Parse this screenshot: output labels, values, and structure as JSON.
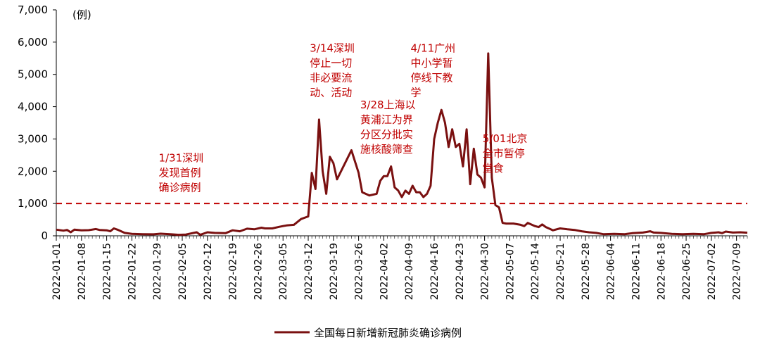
{
  "chart_data": {
    "type": "line",
    "unit_label": "(例)",
    "ylim": [
      0,
      7000
    ],
    "yticks": [
      "0",
      "1,000",
      "2,000",
      "3,000",
      "4,000",
      "5,000",
      "6,000",
      "7,000"
    ],
    "ytick_values": [
      0,
      1000,
      2000,
      3000,
      4000,
      5000,
      6000,
      7000
    ],
    "x_start": "2022-01-01",
    "x_end": "2022-07-12",
    "xticks": [
      "2022-01-01",
      "2022-01-08",
      "2022-01-15",
      "2022-01-22",
      "2022-01-29",
      "2022-02-05",
      "2022-02-12",
      "2022-02-19",
      "2022-02-26",
      "2022-03-05",
      "2022-03-12",
      "2022-03-19",
      "2022-03-26",
      "2022-04-02",
      "2022-04-09",
      "2022-04-16",
      "2022-04-23",
      "2022-04-30",
      "2022-05-07",
      "2022-05-14",
      "2022-05-21",
      "2022-05-28",
      "2022-06-04",
      "2022-06-11",
      "2022-06-18",
      "2022-06-25",
      "2022-07-02",
      "2022-07-09"
    ],
    "reference_line": {
      "value": 1000,
      "style": "dashed",
      "color": "#c00000"
    },
    "series": [
      {
        "name": "全国每日新增新冠肺炎确诊病例",
        "color": "#7a1010",
        "points": [
          [
            "2022-01-01",
            190
          ],
          [
            "2022-01-03",
            160
          ],
          [
            "2022-01-04",
            180
          ],
          [
            "2022-01-05",
            110
          ],
          [
            "2022-01-06",
            190
          ],
          [
            "2022-01-08",
            170
          ],
          [
            "2022-01-10",
            175
          ],
          [
            "2022-01-12",
            210
          ],
          [
            "2022-01-13",
            180
          ],
          [
            "2022-01-15",
            170
          ],
          [
            "2022-01-16",
            140
          ],
          [
            "2022-01-17",
            230
          ],
          [
            "2022-01-18",
            190
          ],
          [
            "2022-01-20",
            90
          ],
          [
            "2022-01-22",
            60
          ],
          [
            "2022-01-25",
            50
          ],
          [
            "2022-01-28",
            45
          ],
          [
            "2022-01-30",
            65
          ],
          [
            "2022-02-02",
            45
          ],
          [
            "2022-02-04",
            30
          ],
          [
            "2022-02-06",
            40
          ],
          [
            "2022-02-09",
            110
          ],
          [
            "2022-02-10",
            30
          ],
          [
            "2022-02-12",
            110
          ],
          [
            "2022-02-14",
            90
          ],
          [
            "2022-02-17",
            80
          ],
          [
            "2022-02-19",
            170
          ],
          [
            "2022-02-21",
            140
          ],
          [
            "2022-02-23",
            220
          ],
          [
            "2022-02-25",
            200
          ],
          [
            "2022-02-27",
            250
          ],
          [
            "2022-02-28",
            230
          ],
          [
            "2022-03-02",
            230
          ],
          [
            "2022-03-04",
            280
          ],
          [
            "2022-03-05",
            300
          ],
          [
            "2022-03-06",
            320
          ],
          [
            "2022-03-08",
            340
          ],
          [
            "2022-03-10",
            520
          ],
          [
            "2022-03-12",
            600
          ],
          [
            "2022-03-13",
            1950
          ],
          [
            "2022-03-14",
            1450
          ],
          [
            "2022-03-15",
            3600
          ],
          [
            "2022-03-16",
            2000
          ],
          [
            "2022-03-17",
            1300
          ],
          [
            "2022-03-18",
            2450
          ],
          [
            "2022-03-19",
            2250
          ],
          [
            "2022-03-20",
            1750
          ],
          [
            "2022-03-22",
            2200
          ],
          [
            "2022-03-24",
            2650
          ],
          [
            "2022-03-26",
            1950
          ],
          [
            "2022-03-27",
            1350
          ],
          [
            "2022-03-29",
            1250
          ],
          [
            "2022-03-31",
            1300
          ],
          [
            "2022-04-01",
            1700
          ],
          [
            "2022-04-02",
            1850
          ],
          [
            "2022-04-03",
            1850
          ],
          [
            "2022-04-04",
            2150
          ],
          [
            "2022-04-05",
            1500
          ],
          [
            "2022-04-06",
            1400
          ],
          [
            "2022-04-07",
            1200
          ],
          [
            "2022-04-08",
            1400
          ],
          [
            "2022-04-09",
            1300
          ],
          [
            "2022-04-10",
            1550
          ],
          [
            "2022-04-11",
            1350
          ],
          [
            "2022-04-12",
            1350
          ],
          [
            "2022-04-13",
            1200
          ],
          [
            "2022-04-14",
            1300
          ],
          [
            "2022-04-15",
            1550
          ],
          [
            "2022-04-16",
            3000
          ],
          [
            "2022-04-17",
            3500
          ],
          [
            "2022-04-18",
            3900
          ],
          [
            "2022-04-19",
            3500
          ],
          [
            "2022-04-20",
            2750
          ],
          [
            "2022-04-21",
            3300
          ],
          [
            "2022-04-22",
            2750
          ],
          [
            "2022-04-23",
            2850
          ],
          [
            "2022-04-24",
            2150
          ],
          [
            "2022-04-25",
            3300
          ],
          [
            "2022-04-26",
            1600
          ],
          [
            "2022-04-27",
            2700
          ],
          [
            "2022-04-28",
            1900
          ],
          [
            "2022-04-29",
            1800
          ],
          [
            "2022-04-30",
            1500
          ],
          [
            "2022-05-01",
            5650
          ],
          [
            "2022-05-02",
            1800
          ],
          [
            "2022-05-03",
            950
          ],
          [
            "2022-05-04",
            880
          ],
          [
            "2022-05-05",
            400
          ],
          [
            "2022-05-06",
            380
          ],
          [
            "2022-05-08",
            380
          ],
          [
            "2022-05-10",
            340
          ],
          [
            "2022-05-11",
            300
          ],
          [
            "2022-05-12",
            400
          ],
          [
            "2022-05-14",
            300
          ],
          [
            "2022-05-15",
            270
          ],
          [
            "2022-05-16",
            350
          ],
          [
            "2022-05-17",
            270
          ],
          [
            "2022-05-18",
            220
          ],
          [
            "2022-05-19",
            170
          ],
          [
            "2022-05-21",
            230
          ],
          [
            "2022-05-23",
            200
          ],
          [
            "2022-05-25",
            180
          ],
          [
            "2022-05-27",
            140
          ],
          [
            "2022-05-29",
            110
          ],
          [
            "2022-05-31",
            90
          ],
          [
            "2022-06-02",
            50
          ],
          [
            "2022-06-05",
            60
          ],
          [
            "2022-06-08",
            50
          ],
          [
            "2022-06-10",
            80
          ],
          [
            "2022-06-13",
            100
          ],
          [
            "2022-06-15",
            140
          ],
          [
            "2022-06-16",
            100
          ],
          [
            "2022-06-18",
            90
          ],
          [
            "2022-06-21",
            60
          ],
          [
            "2022-06-24",
            50
          ],
          [
            "2022-06-27",
            60
          ],
          [
            "2022-06-30",
            50
          ],
          [
            "2022-07-02",
            90
          ],
          [
            "2022-07-04",
            110
          ],
          [
            "2022-07-05",
            80
          ],
          [
            "2022-07-06",
            130
          ],
          [
            "2022-07-08",
            100
          ],
          [
            "2022-07-10",
            110
          ],
          [
            "2022-07-12",
            95
          ]
        ]
      }
    ],
    "annotations": [
      {
        "date": "2022-01-31",
        "value": 2300,
        "lines": [
          "1/31深圳",
          "发现首例",
          "确诊病例"
        ]
      },
      {
        "date": "2022-03-14",
        "value": 5700,
        "lines": [
          "3/14深圳",
          "停止一切",
          "非必要流",
          "动、活动"
        ]
      },
      {
        "date": "2022-03-28",
        "value": 3950,
        "lines": [
          "3/28上海以",
          "黄浦江为界",
          "分区分批实",
          "施核酸筛查"
        ]
      },
      {
        "date": "2022-04-11",
        "value": 5700,
        "lines": [
          "4/11广州",
          "中小学暂",
          "停线下教",
          "学"
        ]
      },
      {
        "date": "2022-05-01",
        "value": 2900,
        "lines": [
          "5/01北京",
          "全市暂停",
          "堂食"
        ]
      }
    ],
    "legend": {
      "position": "bottom",
      "label": "全国每日新增新冠肺炎确诊病例"
    },
    "grid": false
  }
}
